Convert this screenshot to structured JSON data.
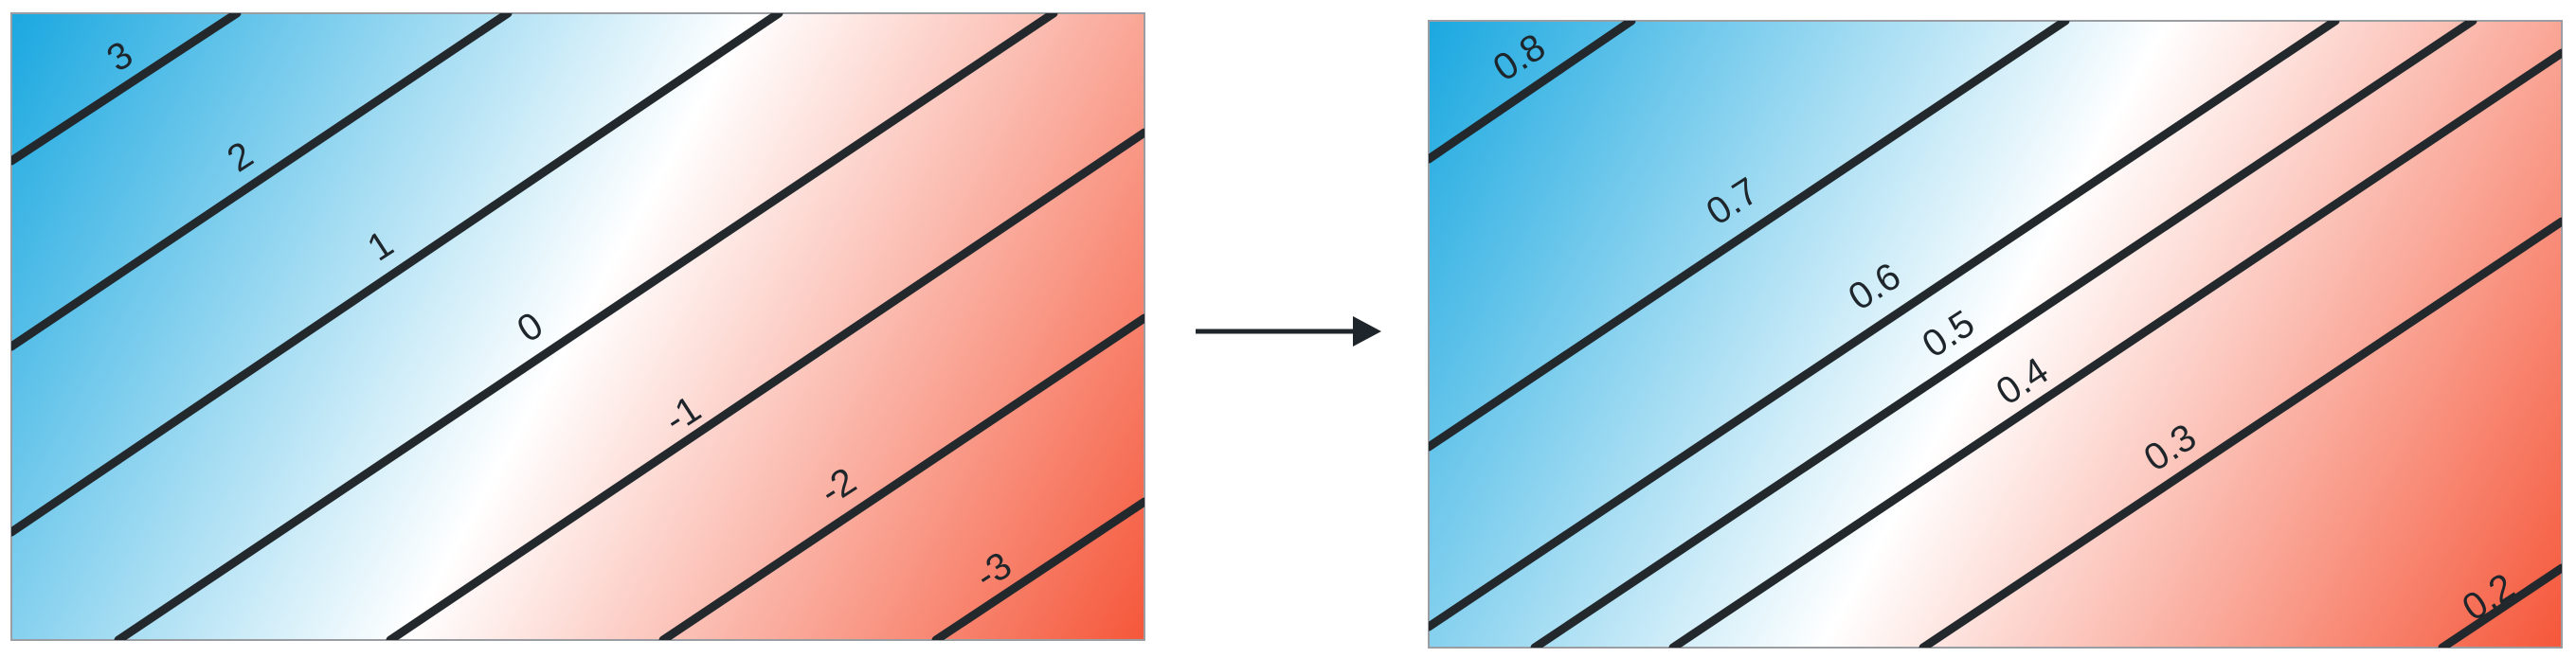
{
  "left_panel": {
    "colors": {
      "high": "#1aa8e0",
      "mid": "#ffffff",
      "low": "#f5573a"
    },
    "contours": [
      {
        "label": "3"
      },
      {
        "label": "2"
      },
      {
        "label": "1"
      },
      {
        "label": "0"
      },
      {
        "label": "-1"
      },
      {
        "label": "-2"
      },
      {
        "label": "-3"
      }
    ]
  },
  "right_panel": {
    "colors": {
      "high": "#1aa8e0",
      "mid": "#ffffff",
      "low": "#f5573a"
    },
    "contours": [
      {
        "label": "0.8"
      },
      {
        "label": "0.7"
      },
      {
        "label": "0.6"
      },
      {
        "label": "0.5"
      },
      {
        "label": "0.4"
      },
      {
        "label": "0.3"
      },
      {
        "label": "0.2"
      }
    ]
  },
  "arrow": {
    "icon": "right-arrow-icon",
    "color": "#1f262b"
  },
  "line_color": "#22282c"
}
